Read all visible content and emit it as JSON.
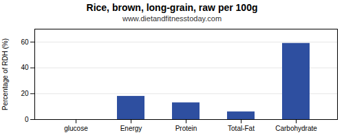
{
  "chart_data": {
    "type": "bar",
    "title": "Rice, brown, long-grain, raw per 100g",
    "subtitle": "www.dietandfitnesstoday.com",
    "categories": [
      "glucose",
      "Energy",
      "Protein",
      "Total-Fat",
      "Carbohydrate"
    ],
    "values": [
      0,
      18,
      13,
      6,
      59
    ],
    "color": "#2e4fa0",
    "ylabel": "Percentage of RDH (%)",
    "ylim": [
      0,
      70
    ],
    "yticks": [
      0,
      20,
      40,
      60
    ],
    "grid": true
  }
}
